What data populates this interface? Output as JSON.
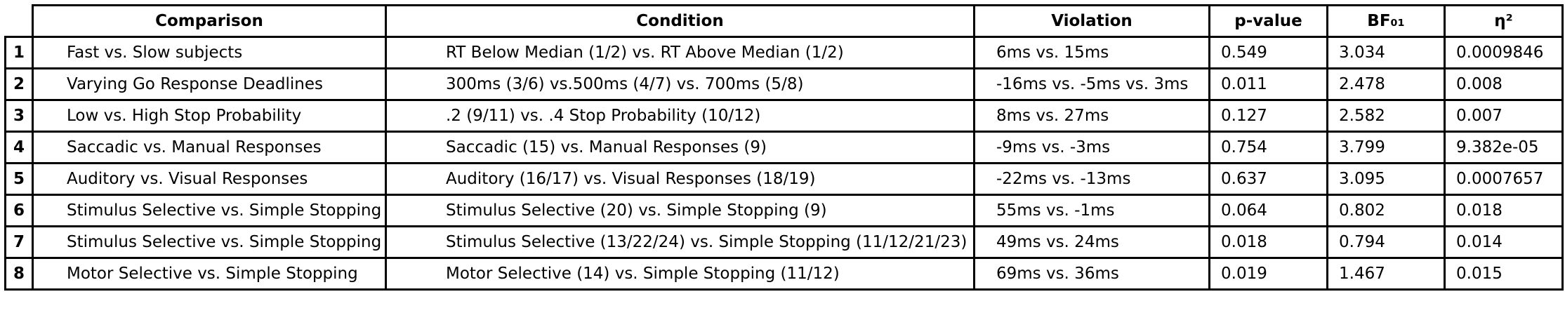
{
  "headers": [
    "",
    "Comparison",
    "Condition",
    "Violation",
    "p-value",
    "BF₀₁",
    "η²"
  ],
  "rows": [
    [
      "1",
      "Fast vs. Slow subjects",
      "RT Below Median (1/2) vs. RT Above Median (1/2)",
      "6ms vs. 15ms",
      "0.549",
      "3.034",
      "0.0009846"
    ],
    [
      "2",
      "Varying Go Response Deadlines",
      "300ms (3/6) vs.500ms (4/7) vs. 700ms (5/8)",
      "-16ms vs. -5ms vs. 3ms",
      "0.011",
      "2.478",
      "0.008"
    ],
    [
      "3",
      "Low vs. High Stop Probability",
      ".2 (9/11) vs. .4 Stop Probability (10/12)",
      "8ms vs. 27ms",
      "0.127",
      "2.582",
      "0.007"
    ],
    [
      "4",
      "Saccadic vs. Manual Responses",
      "Saccadic (15) vs. Manual Responses (9)",
      "-9ms vs. -3ms",
      "0.754",
      "3.799",
      "9.382e-05"
    ],
    [
      "5",
      "Auditory vs. Visual Responses",
      "Auditory (16/17) vs. Visual Responses (18/19)",
      "-22ms vs. -13ms",
      "0.637",
      "3.095",
      "0.0007657"
    ],
    [
      "6",
      "Stimulus Selective vs. Simple Stopping",
      "Stimulus Selective (20) vs. Simple Stopping (9)",
      "55ms vs. -1ms",
      "0.064",
      "0.802",
      "0.018"
    ],
    [
      "7",
      "Stimulus Selective vs. Simple Stopping",
      "Stimulus Selective (13/22/24) vs. Simple Stopping (11/12/21/23)",
      "49ms vs. 24ms",
      "0.018",
      "0.794",
      "0.014"
    ],
    [
      "8",
      "Motor Selective vs. Simple Stopping",
      "Motor Selective (14) vs. Simple Stopping (11/12)",
      "69ms vs. 36ms",
      "0.019",
      "1.467",
      "0.015"
    ]
  ]
}
